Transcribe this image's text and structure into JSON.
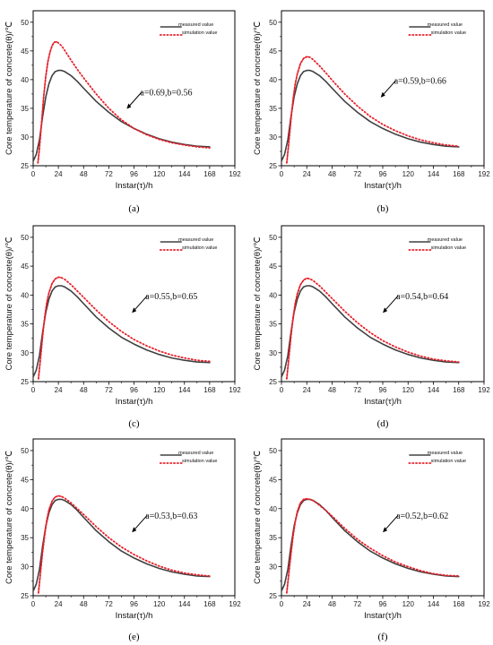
{
  "chart_data": [
    {
      "type": "line",
      "panel_label": "(a)",
      "xlabel": "Instar(τ)/h",
      "ylabel": "Core temperature of concrete(θ)/℃",
      "xlim": [
        0,
        192
      ],
      "ylim": [
        25,
        52
      ],
      "xticks": [
        "0",
        "24",
        "48",
        "72",
        "96",
        "120",
        "144",
        "168",
        "192"
      ],
      "yticks": [
        "25",
        "30",
        "35",
        "40",
        "45",
        "50"
      ],
      "legend": {
        "placement": "top-right",
        "entries": [
          "measured value",
          "simulation value"
        ]
      },
      "annotation": {
        "text": "a=0.69,b=0.56",
        "x": 95,
        "y": 36
      },
      "series": [
        {
          "name": "measured value",
          "color": "#404040",
          "style": "solid",
          "x": [
            0,
            3,
            6,
            9,
            12,
            15,
            18,
            21,
            24,
            27,
            30,
            36,
            42,
            48,
            60,
            72,
            84,
            96,
            108,
            120,
            132,
            144,
            156,
            168
          ],
          "y": [
            25.8,
            27.0,
            29.5,
            33.5,
            37.0,
            39.3,
            40.7,
            41.4,
            41.6,
            41.6,
            41.4,
            40.7,
            39.7,
            38.5,
            36.2,
            34.3,
            32.7,
            31.5,
            30.5,
            29.7,
            29.1,
            28.7,
            28.4,
            28.3
          ]
        },
        {
          "name": "simulation value",
          "color": "#e8202a",
          "style": "dotted",
          "peak_color": "#e8202a",
          "x": [
            4.5,
            6,
            8,
            10,
            12,
            14,
            16,
            18,
            20,
            22,
            24,
            27,
            30,
            36,
            42,
            48,
            60,
            72,
            84,
            96,
            108,
            120,
            132,
            144,
            156,
            168
          ],
          "y": [
            25.5,
            28.0,
            32.5,
            37.0,
            40.6,
            43.1,
            44.8,
            45.9,
            46.5,
            46.6,
            46.4,
            45.9,
            45.1,
            43.4,
            41.8,
            40.3,
            37.5,
            35.0,
            33.0,
            31.5,
            30.4,
            29.6,
            29.0,
            28.6,
            28.3,
            28.1
          ]
        }
      ]
    },
    {
      "type": "line",
      "panel_label": "(b)",
      "xlabel": "Instar(τ)/h",
      "ylabel": "Core temperature of concrete(θ)/℃",
      "xlim": [
        0,
        192
      ],
      "ylim": [
        25,
        52
      ],
      "xticks": [
        "0",
        "24",
        "48",
        "72",
        "96",
        "120",
        "144",
        "168",
        "192"
      ],
      "yticks": [
        "25",
        "30",
        "35",
        "40",
        "45",
        "50"
      ],
      "legend": {
        "placement": "top-right",
        "entries": [
          "measured value",
          "simulation value"
        ]
      },
      "annotation": {
        "text": "a=0.59,b=0.66",
        "x": 100,
        "y": 38
      },
      "series": [
        {
          "name": "measured value",
          "color": "#404040",
          "style": "solid",
          "x": [
            0,
            3,
            6,
            9,
            12,
            15,
            18,
            21,
            24,
            27,
            30,
            36,
            42,
            48,
            60,
            72,
            84,
            96,
            108,
            120,
            132,
            144,
            156,
            168
          ],
          "y": [
            25.8,
            27.0,
            29.5,
            33.5,
            37.0,
            39.3,
            40.7,
            41.4,
            41.6,
            41.6,
            41.4,
            40.7,
            39.7,
            38.5,
            36.2,
            34.3,
            32.7,
            31.5,
            30.5,
            29.7,
            29.1,
            28.7,
            28.4,
            28.3
          ]
        },
        {
          "name": "simulation value",
          "color": "#e8202a",
          "style": "dotted",
          "x": [
            5,
            7,
            9,
            11,
            13,
            15,
            18,
            21,
            24,
            27,
            30,
            36,
            42,
            48,
            60,
            72,
            84,
            96,
            108,
            120,
            132,
            144,
            156,
            168
          ],
          "y": [
            25.5,
            29.0,
            33.0,
            36.5,
            39.2,
            41.0,
            42.8,
            43.7,
            44.0,
            43.9,
            43.5,
            42.4,
            41.2,
            39.9,
            37.5,
            35.4,
            33.6,
            32.2,
            31.1,
            30.2,
            29.5,
            29.0,
            28.6,
            28.4
          ]
        }
      ]
    },
    {
      "type": "line",
      "panel_label": "(c)",
      "xlabel": "Instar(τ)/h",
      "ylabel": "Core temperature of concrete(θ)/℃",
      "xlim": [
        0,
        192
      ],
      "ylim": [
        25,
        52
      ],
      "xticks": [
        "0",
        "24",
        "48",
        "72",
        "96",
        "120",
        "144",
        "168",
        "192"
      ],
      "yticks": [
        "25",
        "30",
        "35",
        "40",
        "45",
        "50"
      ],
      "legend": {
        "placement": "top-right",
        "entries": [
          "measured value",
          "simulation value"
        ]
      },
      "annotation": {
        "text": "a=0.55,b=0.65",
        "x": 100,
        "y": 38
      },
      "series": [
        {
          "name": "measured value",
          "color": "#404040",
          "style": "solid",
          "x": [
            0,
            3,
            6,
            9,
            12,
            15,
            18,
            21,
            24,
            27,
            30,
            36,
            42,
            48,
            60,
            72,
            84,
            96,
            108,
            120,
            132,
            144,
            156,
            168
          ],
          "y": [
            25.8,
            27.0,
            29.5,
            33.5,
            37.0,
            39.3,
            40.7,
            41.4,
            41.6,
            41.6,
            41.4,
            40.7,
            39.7,
            38.5,
            36.2,
            34.3,
            32.7,
            31.5,
            30.5,
            29.7,
            29.1,
            28.7,
            28.4,
            28.3
          ]
        },
        {
          "name": "simulation value",
          "color": "#e8202a",
          "style": "dotted",
          "x": [
            5,
            7,
            9,
            11,
            13,
            15,
            18,
            21,
            24,
            27,
            30,
            36,
            42,
            48,
            60,
            72,
            84,
            96,
            108,
            120,
            132,
            144,
            156,
            168
          ],
          "y": [
            25.5,
            29.0,
            32.8,
            36.2,
            38.7,
            40.4,
            42.0,
            42.8,
            43.1,
            43.0,
            42.7,
            41.8,
            40.7,
            39.6,
            37.4,
            35.4,
            33.7,
            32.3,
            31.2,
            30.3,
            29.6,
            29.1,
            28.7,
            28.5
          ]
        }
      ]
    },
    {
      "type": "line",
      "panel_label": "(d)",
      "xlabel": "Instar(τ)/h",
      "ylabel": "Core temperature of concrete(θ)/℃",
      "xlim": [
        0,
        192
      ],
      "ylim": [
        25,
        52
      ],
      "xticks": [
        "0",
        "24",
        "48",
        "72",
        "96",
        "120",
        "144",
        "168",
        "192"
      ],
      "yticks": [
        "25",
        "30",
        "35",
        "40",
        "45",
        "50"
      ],
      "legend": {
        "placement": "top-right",
        "entries": [
          "measured value",
          "simulation value"
        ]
      },
      "annotation": {
        "text": "a=0.54,b=0.64",
        "x": 102,
        "y": 38
      },
      "series": [
        {
          "name": "measured value",
          "color": "#404040",
          "style": "solid",
          "x": [
            0,
            3,
            6,
            9,
            12,
            15,
            18,
            21,
            24,
            27,
            30,
            36,
            42,
            48,
            60,
            72,
            84,
            96,
            108,
            120,
            132,
            144,
            156,
            168
          ],
          "y": [
            25.8,
            27.0,
            29.5,
            33.5,
            37.0,
            39.3,
            40.7,
            41.4,
            41.6,
            41.6,
            41.4,
            40.7,
            39.7,
            38.5,
            36.2,
            34.3,
            32.7,
            31.5,
            30.5,
            29.7,
            29.1,
            28.7,
            28.4,
            28.3
          ]
        },
        {
          "name": "simulation value",
          "color": "#e8202a",
          "style": "dotted",
          "x": [
            5,
            7,
            9,
            11,
            13,
            15,
            18,
            21,
            24,
            27,
            30,
            36,
            42,
            48,
            60,
            72,
            84,
            96,
            108,
            120,
            132,
            144,
            156,
            168
          ],
          "y": [
            25.5,
            29.0,
            32.8,
            36.0,
            38.5,
            40.2,
            41.8,
            42.6,
            42.9,
            42.8,
            42.5,
            41.6,
            40.5,
            39.4,
            37.2,
            35.2,
            33.5,
            32.1,
            31.0,
            30.1,
            29.4,
            28.9,
            28.6,
            28.4
          ]
        }
      ]
    },
    {
      "type": "line",
      "panel_label": "(e)",
      "xlabel": "Instar(τ)/h",
      "ylabel": "Core temperature of concrete(θ)/℃",
      "xlim": [
        0,
        192
      ],
      "ylim": [
        25,
        52
      ],
      "xticks": [
        "0",
        "24",
        "48",
        "72",
        "96",
        "120",
        "144",
        "168",
        "192"
      ],
      "yticks": [
        "25",
        "30",
        "35",
        "40",
        "45",
        "50"
      ],
      "legend": {
        "placement": "top-right",
        "entries": [
          "measured value",
          "simulation value"
        ]
      },
      "annotation": {
        "text": "a=0.53,b=0.63",
        "x": 100,
        "y": 37
      },
      "series": [
        {
          "name": "measured value",
          "color": "#404040",
          "style": "solid",
          "x": [
            0,
            3,
            6,
            9,
            12,
            15,
            18,
            21,
            24,
            27,
            30,
            36,
            42,
            48,
            60,
            72,
            84,
            96,
            108,
            120,
            132,
            144,
            156,
            168
          ],
          "y": [
            25.8,
            27.0,
            29.5,
            33.5,
            37.0,
            39.3,
            40.7,
            41.4,
            41.6,
            41.6,
            41.4,
            40.7,
            39.7,
            38.5,
            36.2,
            34.3,
            32.7,
            31.5,
            30.5,
            29.7,
            29.1,
            28.7,
            28.4,
            28.3
          ]
        },
        {
          "name": "simulation value",
          "color": "#e8202a",
          "style": "dotted",
          "x": [
            5,
            7,
            9,
            11,
            13,
            15,
            18,
            21,
            24,
            27,
            30,
            36,
            42,
            48,
            60,
            72,
            84,
            96,
            108,
            120,
            132,
            144,
            156,
            168
          ],
          "y": [
            25.5,
            29.0,
            32.5,
            35.5,
            38.0,
            39.8,
            41.3,
            42.0,
            42.2,
            42.1,
            41.8,
            41.0,
            40.0,
            39.0,
            36.9,
            35.0,
            33.4,
            32.1,
            31.0,
            30.1,
            29.4,
            28.9,
            28.6,
            28.4
          ]
        }
      ]
    },
    {
      "type": "line",
      "panel_label": "(f)",
      "xlabel": "Instar(τ)/h",
      "ylabel": "Core temperature of concrete(θ)/℃",
      "xlim": [
        0,
        192
      ],
      "ylim": [
        25,
        52
      ],
      "xticks": [
        "0",
        "24",
        "48",
        "72",
        "96",
        "120",
        "144",
        "168",
        "192"
      ],
      "yticks": [
        "25",
        "30",
        "35",
        "40",
        "45",
        "50"
      ],
      "legend": {
        "placement": "top-right",
        "entries": [
          "measured value",
          "simulation value"
        ]
      },
      "annotation": {
        "text": "a=0.52,b=0.62",
        "x": 102,
        "y": 37
      },
      "series": [
        {
          "name": "measured value",
          "color": "#404040",
          "style": "solid",
          "x": [
            0,
            3,
            6,
            9,
            12,
            15,
            18,
            21,
            24,
            27,
            30,
            36,
            42,
            48,
            60,
            72,
            84,
            96,
            108,
            120,
            132,
            144,
            156,
            168
          ],
          "y": [
            25.8,
            27.0,
            29.5,
            33.5,
            37.0,
            39.3,
            40.7,
            41.4,
            41.6,
            41.6,
            41.4,
            40.7,
            39.7,
            38.5,
            36.2,
            34.3,
            32.7,
            31.5,
            30.5,
            29.7,
            29.1,
            28.7,
            28.4,
            28.3
          ]
        },
        {
          "name": "simulation value",
          "color": "#e8202a",
          "style": "dotted",
          "x": [
            5,
            7,
            9,
            11,
            13,
            15,
            18,
            21,
            24,
            27,
            30,
            36,
            42,
            48,
            60,
            72,
            84,
            96,
            108,
            120,
            132,
            144,
            156,
            168
          ],
          "y": [
            25.5,
            28.8,
            32.2,
            35.2,
            37.7,
            39.5,
            41.0,
            41.6,
            41.7,
            41.6,
            41.4,
            40.6,
            39.7,
            38.7,
            36.6,
            34.7,
            33.2,
            31.9,
            30.8,
            30.0,
            29.3,
            28.8,
            28.5,
            28.4
          ]
        }
      ]
    }
  ]
}
